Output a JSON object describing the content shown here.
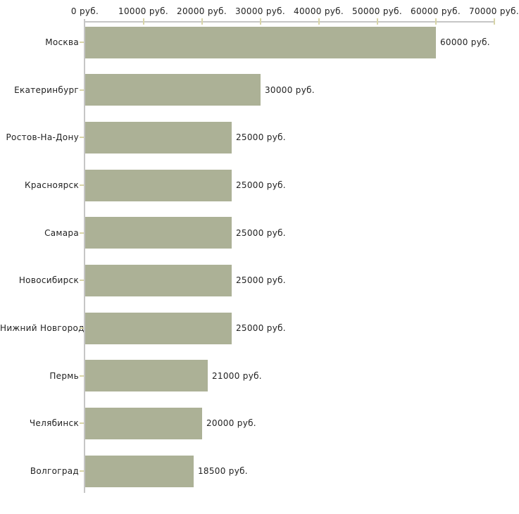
{
  "chart_data": {
    "type": "bar",
    "orientation": "horizontal",
    "title": "",
    "xlabel": "",
    "ylabel": "",
    "grid": false,
    "categories": [
      "Москва",
      "Екатеринбург",
      "Ростов-На-Дону",
      "Красноярск",
      "Самара",
      "Новосибирск",
      "Нижний Новгород",
      "Пермь",
      "Челябинск",
      "Волгоград"
    ],
    "values": [
      60000,
      30000,
      25000,
      25000,
      25000,
      25000,
      25000,
      21000,
      20000,
      18500
    ],
    "value_labels": [
      "60000 руб.",
      "30000 руб.",
      "25000 руб.",
      "25000 руб.",
      "25000 руб.",
      "25000 руб.",
      "25000 руб.",
      "21000 руб.",
      "20000 руб.",
      "18500 руб."
    ],
    "x_axis": {
      "position": "top",
      "min": 0,
      "max": 70000,
      "tick_step": 10000,
      "tick_labels": [
        "0 руб.",
        "10000 руб.",
        "20000 руб.",
        "30000 руб.",
        "40000 руб.",
        "50000 руб.",
        "60000 руб.",
        "70000 руб."
      ]
    },
    "colors": {
      "bar": "#acb196",
      "axis_line": "#c6c6c6",
      "tick_mark": "#d8d5a8",
      "text": "#222222",
      "background": "#ffffff"
    }
  }
}
